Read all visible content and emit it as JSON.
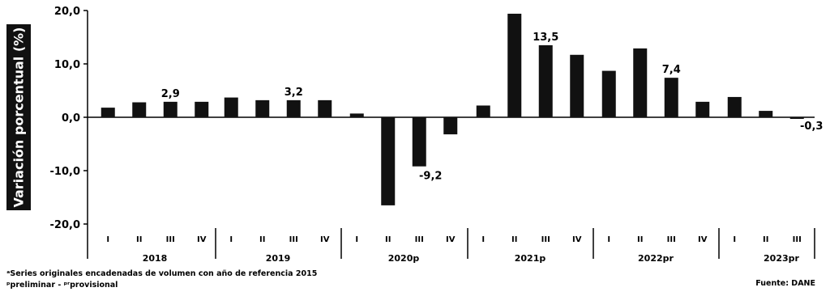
{
  "chart_data": {
    "type": "bar",
    "title": "",
    "ylabel": "Variación porcentual (%)",
    "xlabel": "",
    "ylim": [
      -20,
      20
    ],
    "yticks": [
      "20,0",
      "10,0",
      "0,0",
      "-10,0",
      "-20,0"
    ],
    "ytick_values": [
      20,
      10,
      0,
      -10,
      -20
    ],
    "bar_color": "#111111",
    "grid": false,
    "groups": [
      {
        "label": "2018",
        "quarters": [
          "I",
          "II",
          "III",
          "IV"
        ],
        "values": [
          1.8,
          2.8,
          2.9,
          2.9
        ]
      },
      {
        "label": "2019",
        "quarters": [
          "I",
          "II",
          "III",
          "IV"
        ],
        "values": [
          3.7,
          3.2,
          3.2,
          3.2
        ]
      },
      {
        "label": "2020p",
        "quarters": [
          "I",
          "II",
          "III",
          "IV"
        ],
        "values": [
          0.7,
          -16.5,
          -9.2,
          -3.2
        ]
      },
      {
        "label": "2021p",
        "quarters": [
          "I",
          "II",
          "III",
          "IV"
        ],
        "values": [
          2.2,
          19.4,
          13.5,
          11.7
        ]
      },
      {
        "label": "2022pr",
        "quarters": [
          "I",
          "II",
          "III",
          "IV"
        ],
        "values": [
          8.7,
          12.9,
          7.4,
          2.9
        ]
      },
      {
        "label": "2023pr",
        "quarters": [
          "I",
          "II",
          "III"
        ],
        "values": [
          3.8,
          1.2,
          -0.3
        ]
      }
    ],
    "data_labels": [
      {
        "group": 0,
        "quarter": 2,
        "text": "2,9"
      },
      {
        "group": 1,
        "quarter": 2,
        "text": "3,2"
      },
      {
        "group": 2,
        "quarter": 2,
        "text": "-9,2"
      },
      {
        "group": 3,
        "quarter": 2,
        "text": "13,5"
      },
      {
        "group": 4,
        "quarter": 2,
        "text": "7,4"
      },
      {
        "group": 5,
        "quarter": 2,
        "text": "-0,3"
      }
    ]
  },
  "notes": {
    "line1": "ᵃSeries originales encadenadas de volumen con año de referencia 2015",
    "line2": "ᵖpreliminar - ᵖʳprovisional"
  },
  "source": "Fuente: DANE"
}
